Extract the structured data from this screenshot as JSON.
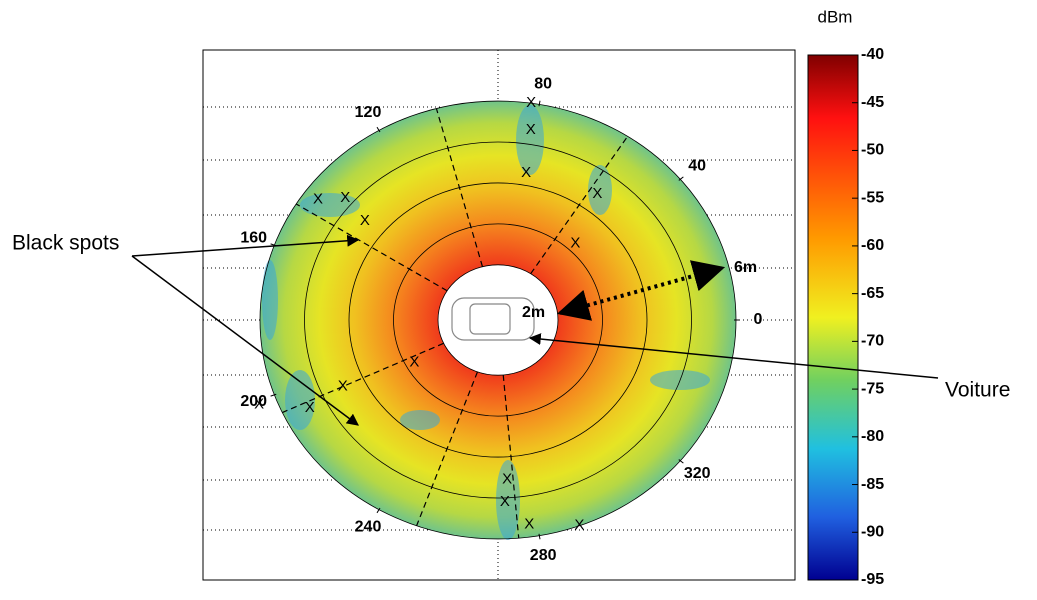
{
  "chart_data": {
    "type": "polar-heatmap",
    "colorbar": {
      "label": "dBm",
      "lim": [
        -95,
        -40
      ],
      "ticks": [
        -40,
        -45,
        -50,
        -55,
        -60,
        -65,
        -70,
        -75,
        -80,
        -85,
        -90,
        -95
      ]
    },
    "angle_ticks": [
      0,
      40,
      80,
      120,
      160,
      200,
      240,
      280,
      320
    ],
    "rlim": [
      2,
      6
    ],
    "rings": [
      2,
      3,
      4,
      5,
      6
    ],
    "radial_lines": [
      57,
      105,
      148,
      205,
      250,
      275
    ],
    "spots": {
      "label": "X",
      "angle": [
        82,
        81,
        80,
        54,
        47,
        144,
        139,
        141,
        201,
        207,
        205,
        209,
        273,
        272,
        278,
        290
      ],
      "radius": [
        6.0,
        5.35,
        4.3,
        4.45,
        3.2,
        5.65,
        5.2,
        4.5,
        6.4,
        5.4,
        4.5,
        2.8,
        4.55,
        5.1,
        5.7,
        6.0
      ]
    },
    "annotations": {
      "black_spots": "Black spots",
      "car": "Voiture",
      "r_inner": "2m",
      "r_outer": "6m"
    }
  }
}
